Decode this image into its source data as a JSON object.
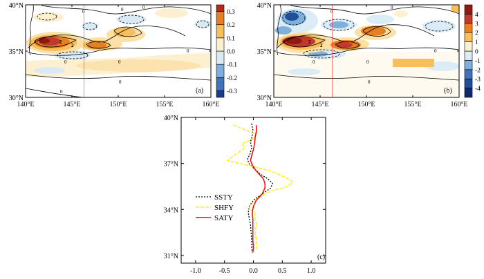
{
  "chart_data": [
    {
      "type": "heatmap",
      "panel_label": "(a)",
      "xlim": [
        140,
        160
      ],
      "ylim": [
        30,
        40
      ],
      "x_ticks": [
        140,
        145,
        150,
        155,
        160
      ],
      "y_ticks": [
        30,
        35,
        40
      ],
      "x_tick_labels": [
        "140°E",
        "145°E",
        "150°E",
        "155°E",
        "160°E"
      ],
      "y_tick_labels": [
        "30°N",
        "35°N",
        "40°N"
      ],
      "reference_longitude": 146.3,
      "colorbar": {
        "levels": [
          -0.35,
          -0.3,
          -0.2,
          -0.1,
          0,
          0.1,
          0.2,
          0.3,
          0.35
        ],
        "tick_values": [
          -0.3,
          -0.2,
          -0.1,
          0.0,
          0.1,
          0.2,
          0.3
        ],
        "tick_labels": [
          "-0.3",
          "-0.2",
          "-0.1",
          "0.0",
          "0.1",
          "0.2",
          "0.3"
        ],
        "colors": [
          "#1a3c8c",
          "#3f74b8",
          "#7fb0dc",
          "#d9eaf5",
          "#fdf0d0",
          "#f6bf5c",
          "#e67e22",
          "#b52a1a"
        ]
      },
      "contour_labels": [
        "0",
        "0",
        "0",
        "0",
        "0",
        "0",
        "0",
        "0",
        "2",
        "2"
      ]
    },
    {
      "type": "heatmap",
      "panel_label": "(b)",
      "xlim": [
        140,
        160
      ],
      "ylim": [
        30,
        40
      ],
      "x_ticks": [
        140,
        145,
        150,
        155,
        160
      ],
      "y_ticks": [
        30,
        35,
        40
      ],
      "x_tick_labels": [
        "140°E",
        "145°E",
        "150°E",
        "155°E",
        "160°E"
      ],
      "y_tick_labels": [
        "30°N",
        "35°N",
        "40°N"
      ],
      "reference_longitude": 146.3,
      "colorbar": {
        "levels": [
          -5,
          -4,
          -3,
          -2,
          -1,
          0,
          1,
          2,
          3,
          4,
          5
        ],
        "tick_values": [
          -4,
          -3,
          -2,
          -1,
          0,
          1,
          2,
          3,
          4
        ],
        "tick_labels": [
          "-4",
          "-3",
          "-2",
          "-1",
          "0",
          "1",
          "2",
          "3",
          "4"
        ],
        "colors": [
          "#0e2a6b",
          "#1f4f99",
          "#3f74b8",
          "#7fb0dc",
          "#dcecf7",
          "#fdf0d0",
          "#f6bf5c",
          "#e67e22",
          "#c0392b",
          "#8e1a12"
        ]
      },
      "contour_labels": [
        "0",
        "0",
        "0",
        "0",
        "0",
        "0",
        "2",
        "2"
      ]
    },
    {
      "type": "line",
      "panel_label": "(c)",
      "xlim": [
        -1.25,
        1.25
      ],
      "ylim": [
        30.5,
        40
      ],
      "x_ticks": [
        -1.0,
        -0.5,
        0.0,
        0.5,
        1.0
      ],
      "x_tick_labels": [
        "-1.0",
        "-0.5",
        "0.0",
        "0.5",
        "1.0"
      ],
      "y_ticks": [
        31,
        34,
        37,
        40
      ],
      "y_tick_labels": [
        "31°N",
        "34°N",
        "37°N",
        "40°N"
      ],
      "legend_position": "left-middle",
      "series": [
        {
          "name": "SSTY",
          "color": "#000000",
          "style": "dotted",
          "points": [
            [
              -0.03,
              39.6
            ],
            [
              -0.01,
              39.2
            ],
            [
              -0.02,
              38.8
            ],
            [
              -0.05,
              38.4
            ],
            [
              -0.03,
              38.0
            ],
            [
              -0.06,
              37.6
            ],
            [
              -0.1,
              37.3
            ],
            [
              -0.08,
              37.0
            ],
            [
              0.0,
              36.7
            ],
            [
              0.12,
              36.3
            ],
            [
              0.25,
              36.0
            ],
            [
              0.33,
              35.7
            ],
            [
              0.3,
              35.4
            ],
            [
              0.15,
              35.0
            ],
            [
              0.0,
              34.6
            ],
            [
              -0.07,
              34.2
            ],
            [
              -0.09,
              33.8
            ],
            [
              -0.07,
              33.4
            ],
            [
              -0.05,
              33.0
            ],
            [
              -0.04,
              32.5
            ],
            [
              -0.03,
              32.0
            ],
            [
              -0.03,
              31.5
            ],
            [
              -0.02,
              31.2
            ]
          ]
        },
        {
          "name": "SHFY",
          "color": "#ffeb00",
          "style": "dashed",
          "points": [
            [
              -0.35,
              39.5
            ],
            [
              -0.15,
              39.2
            ],
            [
              0.05,
              38.9
            ],
            [
              0.0,
              38.6
            ],
            [
              -0.2,
              38.3
            ],
            [
              -0.15,
              38.0
            ],
            [
              -0.3,
              37.6
            ],
            [
              -0.45,
              37.2
            ],
            [
              -0.25,
              37.0
            ],
            [
              0.0,
              36.8
            ],
            [
              0.3,
              36.5
            ],
            [
              0.55,
              36.1
            ],
            [
              0.68,
              35.8
            ],
            [
              0.6,
              35.5
            ],
            [
              0.3,
              35.2
            ],
            [
              0.15,
              34.9
            ],
            [
              0.0,
              34.5
            ],
            [
              -0.08,
              34.1
            ],
            [
              0.02,
              33.8
            ],
            [
              0.03,
              33.4
            ],
            [
              0.05,
              33.0
            ],
            [
              0.03,
              32.5
            ],
            [
              0.05,
              32.0
            ],
            [
              0.05,
              31.6
            ],
            [
              0.06,
              31.3
            ]
          ]
        },
        {
          "name": "SATY",
          "color": "#ff0000",
          "style": "solid",
          "points": [
            [
              0.05,
              39.5
            ],
            [
              0.05,
              39.1
            ],
            [
              0.03,
              38.7
            ],
            [
              0.02,
              38.3
            ],
            [
              0.0,
              37.9
            ],
            [
              -0.03,
              37.5
            ],
            [
              -0.05,
              37.2
            ],
            [
              -0.02,
              36.9
            ],
            [
              0.03,
              36.6
            ],
            [
              0.1,
              36.3
            ],
            [
              0.17,
              36.0
            ],
            [
              0.2,
              35.7
            ],
            [
              0.2,
              35.4
            ],
            [
              0.15,
              35.0
            ],
            [
              0.05,
              34.6
            ],
            [
              0.0,
              34.2
            ],
            [
              -0.02,
              33.8
            ],
            [
              -0.01,
              33.4
            ],
            [
              -0.01,
              33.0
            ],
            [
              -0.01,
              32.5
            ],
            [
              -0.01,
              32.0
            ],
            [
              0.0,
              31.5
            ],
            [
              -0.01,
              31.2
            ]
          ]
        }
      ]
    }
  ]
}
